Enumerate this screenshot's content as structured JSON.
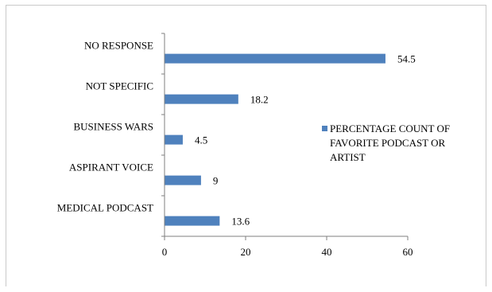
{
  "chart_data": {
    "type": "bar",
    "orientation": "horizontal",
    "categories": [
      "NO RESPONSE",
      "NOT SPECIFIC",
      "BUSINESS WARS",
      "ASPIRANT VOICE",
      "MEDICAL PODCAST"
    ],
    "series": [
      {
        "name": "PERCENTAGE COUNT OF FAVORITE PODCAST OR ARTIST",
        "values": [
          54.5,
          18.2,
          4.5,
          9,
          13.6
        ],
        "value_labels": [
          "54.5",
          "18.2",
          "4.5",
          "9",
          "13.6"
        ],
        "color": "#4f81bd"
      }
    ],
    "legend_lines": [
      "PERCENTAGE COUNT OF",
      "FAVORITE PODCAST OR",
      "ARTIST"
    ],
    "legend_position": "right",
    "xlim": [
      0,
      60
    ],
    "x_ticks": [
      "0",
      "20",
      "40",
      "60"
    ],
    "grid": false,
    "title": "",
    "xlabel": "",
    "ylabel": ""
  }
}
